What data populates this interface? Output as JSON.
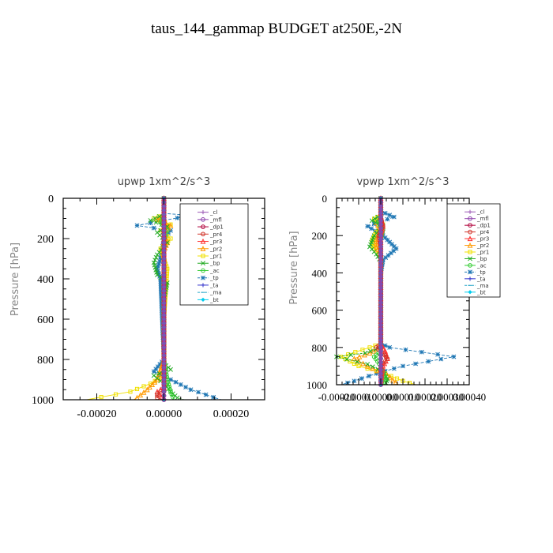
{
  "figure_title": "taus_144_gammap  BUDGET at250E,-2N",
  "legend_entries": [
    {
      "name": "_cl",
      "color": "#9b59b6",
      "marker": "plus"
    },
    {
      "name": "_mfl",
      "color": "#8e44ad",
      "marker": "circle"
    },
    {
      "name": "_dp1",
      "color": "#b0003a",
      "marker": "circle"
    },
    {
      "name": "_pr4",
      "color": "#d0352b",
      "marker": "circle"
    },
    {
      "name": "_pr3",
      "color": "#ff3030",
      "marker": "triangle"
    },
    {
      "name": "_pr2",
      "color": "#ff9900",
      "marker": "triangle"
    },
    {
      "name": "_pr1",
      "color": "#f0e000",
      "marker": "square"
    },
    {
      "name": "_bp",
      "color": "#22aa22",
      "marker": "cross"
    },
    {
      "name": "_ac",
      "color": "#33cc33",
      "marker": "circle"
    },
    {
      "name": "_tp",
      "color": "#1f77b4",
      "marker": "star"
    },
    {
      "name": "_ta",
      "color": "#3333cc",
      "marker": "plus"
    },
    {
      "name": "_ma",
      "color": "#2aa7c9",
      "marker": "dash"
    },
    {
      "name": "_bt",
      "color": "#00ccee",
      "marker": "diamond"
    }
  ],
  "chart_data": [
    {
      "type": "line",
      "title": "upwp   1xm^2/s^3",
      "ylabel": "Pressure [hPa]",
      "xlabel": "",
      "xlim": [
        -0.0003,
        0.0003
      ],
      "ylim": [
        1000,
        0
      ],
      "xticks": [
        -0.0002,
        0,
        0.0002
      ],
      "xtick_labels": [
        "-0.00020",
        "0.00000",
        "0.00020"
      ],
      "yticks": [
        0,
        200,
        400,
        600,
        800,
        1000
      ],
      "ytick_labels": [
        "0",
        "200",
        "400",
        "600",
        "800",
        "1000"
      ],
      "legend_position": "top-right",
      "series": [
        {
          "name": "_tp",
          "points": [
            [
              0,
              0
            ],
            [
              0,
              75
            ],
            [
              8e-05,
              85
            ],
            [
              -8e-05,
              135
            ],
            [
              2e-05,
              160
            ],
            [
              0,
              200
            ],
            [
              -1e-05,
              300
            ],
            [
              -2e-05,
              350
            ],
            [
              -1e-05,
              400
            ],
            [
              0,
              800
            ],
            [
              -3e-05,
              860
            ],
            [
              2e-05,
              900
            ],
            [
              8e-05,
              950
            ],
            [
              0.00017,
              1000
            ]
          ]
        },
        {
          "name": "_pr1",
          "points": [
            [
              0,
              0
            ],
            [
              0,
              80
            ],
            [
              -3e-05,
              100
            ],
            [
              2e-05,
              130
            ],
            [
              -1e-05,
              160
            ],
            [
              2e-05,
              200
            ],
            [
              -1e-05,
              250
            ],
            [
              0,
              300
            ],
            [
              1e-05,
              350
            ],
            [
              0,
              600
            ],
            [
              0,
              880
            ],
            [
              -4e-05,
              920
            ],
            [
              -0.0001,
              960
            ],
            [
              -0.00023,
              1000
            ]
          ]
        },
        {
          "name": "_pr2",
          "points": [
            [
              0,
              0
            ],
            [
              0,
              85
            ],
            [
              -2e-05,
              105
            ],
            [
              2e-05,
              135
            ],
            [
              0,
              170
            ],
            [
              1e-05,
              220
            ],
            [
              0,
              260
            ],
            [
              0,
              800
            ],
            [
              -2e-05,
              900
            ],
            [
              -5e-05,
              950
            ],
            [
              -8e-05,
              990
            ],
            [
              -9e-05,
              1000
            ]
          ]
        },
        {
          "name": "_bp",
          "points": [
            [
              0,
              0
            ],
            [
              0,
              80
            ],
            [
              -4e-05,
              110
            ],
            [
              1e-05,
              140
            ],
            [
              -2e-05,
              170
            ],
            [
              1e-05,
              220
            ],
            [
              -2e-05,
              280
            ],
            [
              -3e-05,
              320
            ],
            [
              -2e-05,
              380
            ],
            [
              1e-05,
              420
            ],
            [
              0,
              500
            ],
            [
              0,
              820
            ],
            [
              2e-05,
              850
            ],
            [
              -3e-05,
              880
            ],
            [
              0,
              920
            ],
            [
              2e-05,
              960
            ],
            [
              4e-05,
              990
            ],
            [
              6e-05,
              1000
            ]
          ]
        },
        {
          "name": "_ac",
          "points": [
            [
              0,
              0
            ],
            [
              0,
              90
            ],
            [
              -1e-05,
              120
            ],
            [
              1e-05,
              160
            ],
            [
              0,
              200
            ],
            [
              0,
              800
            ],
            [
              1e-05,
              900
            ],
            [
              2e-05,
              960
            ],
            [
              3e-05,
              1000
            ]
          ]
        },
        {
          "name": "_pr4",
          "points": [
            [
              0,
              0
            ],
            [
              0,
              950
            ],
            [
              -2e-05,
              970
            ],
            [
              -2e-05,
              990
            ],
            [
              0,
              1000
            ]
          ]
        },
        {
          "name": "_pr3",
          "points": [
            [
              0,
              0
            ],
            [
              0,
              940
            ],
            [
              -2e-05,
              960
            ],
            [
              0,
              1000
            ]
          ]
        },
        {
          "name": "_ma",
          "points": [
            [
              0,
              0
            ],
            [
              0,
              1000
            ]
          ]
        },
        {
          "name": "_dp1",
          "points": [
            [
              0,
              0
            ],
            [
              0,
              1000
            ]
          ]
        },
        {
          "name": "_mfl",
          "points": [
            [
              0,
              0
            ],
            [
              0,
              1000
            ]
          ]
        },
        {
          "name": "_cl",
          "points": [
            [
              0,
              0
            ],
            [
              0,
              1000
            ]
          ]
        },
        {
          "name": "_ta",
          "points": [
            [
              0,
              0
            ],
            [
              0,
              1000
            ]
          ]
        },
        {
          "name": "_bt",
          "points": [
            [
              0,
              0
            ],
            [
              0,
              1000
            ]
          ]
        }
      ]
    },
    {
      "type": "line",
      "title": "vpwp   1xm^2/s^3",
      "ylabel": "Pressure [hPa]",
      "xlabel": "",
      "xlim": [
        -0.0002,
        0.0004
      ],
      "ylim": [
        1000,
        0
      ],
      "xticks": [
        -0.0002,
        -0.0001,
        0,
        0.0001,
        0.0002,
        0.0003,
        0.0004
      ],
      "xtick_labels": [
        "-0.00020",
        "-0.00010",
        "0.00000",
        "0.00010",
        "0.00020",
        "0.00030",
        "0.00040"
      ],
      "yticks": [
        0,
        200,
        400,
        600,
        800,
        1000
      ],
      "ytick_labels": [
        "0",
        "200",
        "400",
        "600",
        "800",
        "1000"
      ],
      "legend_position": "top-right",
      "series": [
        {
          "name": "_tp",
          "points": [
            [
              0,
              0
            ],
            [
              0,
              70
            ],
            [
              6e-05,
              100
            ],
            [
              -6e-05,
              150
            ],
            [
              1e-05,
              200
            ],
            [
              7e-05,
              270
            ],
            [
              1e-05,
              330
            ],
            [
              0,
              400
            ],
            [
              0,
              780
            ],
            [
              4e-05,
              800
            ],
            [
              0.00033,
              850
            ],
            [
              0.0001,
              900
            ],
            [
              -2e-05,
              940
            ],
            [
              -0.00012,
              980
            ],
            [
              -0.00018,
              1000
            ]
          ]
        },
        {
          "name": "_pr1",
          "points": [
            [
              0,
              0
            ],
            [
              0,
              90
            ],
            [
              -3e-05,
              110
            ],
            [
              1e-05,
              140
            ],
            [
              -2e-05,
              180
            ],
            [
              -4e-05,
              230
            ],
            [
              -3e-05,
              270
            ],
            [
              0,
              310
            ],
            [
              0,
              780
            ],
            [
              -5e-05,
              800
            ],
            [
              -0.00018,
              850
            ],
            [
              -0.0001,
              900
            ],
            [
              2e-05,
              940
            ],
            [
              0.0001,
              980
            ],
            [
              0.00016,
              1000
            ]
          ]
        },
        {
          "name": "_pr2",
          "points": [
            [
              0,
              0
            ],
            [
              0,
              100
            ],
            [
              -2e-05,
              130
            ],
            [
              0,
              170
            ],
            [
              -2e-05,
              220
            ],
            [
              -2e-05,
              260
            ],
            [
              0,
              300
            ],
            [
              0,
              800
            ],
            [
              -5e-05,
              830
            ],
            [
              -0.00012,
              860
            ],
            [
              -6e-05,
              900
            ],
            [
              3e-05,
              950
            ],
            [
              8e-05,
              1000
            ]
          ]
        },
        {
          "name": "_bp",
          "points": [
            [
              0,
              0
            ],
            [
              0,
              90
            ],
            [
              -4e-05,
              120
            ],
            [
              1e-05,
              150
            ],
            [
              -3e-05,
              200
            ],
            [
              -5e-05,
              260
            ],
            [
              -2e-05,
              300
            ],
            [
              0,
              340
            ],
            [
              0,
              800
            ],
            [
              -7e-05,
              830
            ],
            [
              -0.0002,
              850
            ],
            [
              -6e-05,
              890
            ],
            [
              1e-05,
              930
            ],
            [
              3e-05,
              970
            ],
            [
              2e-05,
              1000
            ]
          ]
        },
        {
          "name": "_ac",
          "points": [
            [
              0,
              0
            ],
            [
              0,
              100
            ],
            [
              -1e-05,
              130
            ],
            [
              1e-05,
              170
            ],
            [
              0,
              220
            ],
            [
              0,
              820
            ],
            [
              -3e-05,
              850
            ],
            [
              0,
              900
            ],
            [
              2e-05,
              960
            ],
            [
              1e-05,
              1000
            ]
          ]
        },
        {
          "name": "_pr4",
          "points": [
            [
              0,
              0
            ],
            [
              0,
              100
            ],
            [
              1e-05,
              150
            ],
            [
              -1e-05,
              200
            ],
            [
              0,
              260
            ],
            [
              0,
              780
            ],
            [
              -2e-05,
              800
            ],
            [
              1e-05,
              830
            ],
            [
              3e-05,
              860
            ],
            [
              0,
              900
            ],
            [
              0,
              1000
            ]
          ]
        },
        {
          "name": "_pr3",
          "points": [
            [
              0,
              0
            ],
            [
              0,
              100
            ],
            [
              1e-05,
              150
            ],
            [
              0,
              200
            ],
            [
              0,
              780
            ],
            [
              2e-05,
              820
            ],
            [
              3e-05,
              860
            ],
            [
              1e-05,
              900
            ],
            [
              0,
              1000
            ]
          ]
        },
        {
          "name": "_ma",
          "points": [
            [
              0,
              0
            ],
            [
              0,
              1000
            ]
          ]
        },
        {
          "name": "_dp1",
          "points": [
            [
              0,
              0
            ],
            [
              0,
              1000
            ]
          ]
        },
        {
          "name": "_mfl",
          "points": [
            [
              0,
              0
            ],
            [
              0,
              1000
            ]
          ]
        },
        {
          "name": "_cl",
          "points": [
            [
              0,
              0
            ],
            [
              0,
              1000
            ]
          ]
        },
        {
          "name": "_ta",
          "points": [
            [
              0,
              0
            ],
            [
              0,
              1000
            ]
          ]
        },
        {
          "name": "_bt",
          "points": [
            [
              0,
              0
            ],
            [
              0,
              1000
            ]
          ]
        }
      ]
    }
  ]
}
